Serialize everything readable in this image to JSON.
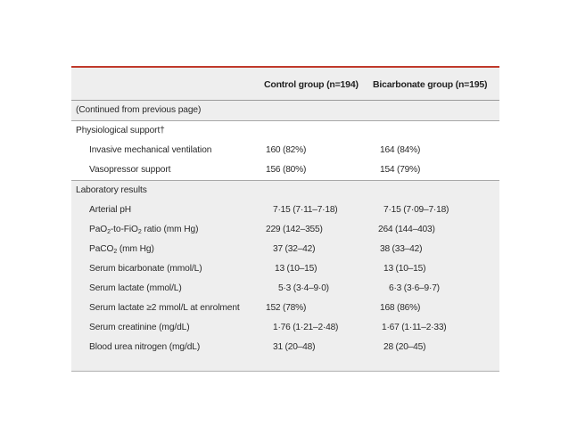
{
  "table": {
    "columns": [
      "Control group (n=194)",
      "Bicarbonate group (n=195)"
    ],
    "continued": "(Continued from previous page)",
    "sections": [
      {
        "title": "Physiological support†",
        "rows": [
          {
            "label": "Invasive mechanical ventilation",
            "control": "160 (82%)",
            "bicarbonate": "164 (84%)"
          },
          {
            "label": "Vasopressor support",
            "control": "156 (80%)",
            "bicarbonate": "154 (79%)"
          }
        ]
      },
      {
        "title": "Laboratory results",
        "rows": [
          {
            "label": "Arterial pH",
            "control": "7·15 (7·11–7·18)",
            "bicarbonate": "7·15 (7·09–7·18)"
          },
          {
            "label_parts": [
              "PaO",
              "2",
              "-to-FiO",
              "2",
              " ratio (mm Hg)"
            ],
            "control": "229 (142–355)",
            "bicarbonate": "264 (144–403)"
          },
          {
            "label_parts": [
              "PaCO",
              "2",
              " (mm Hg)"
            ],
            "control": "37 (32–42)",
            "bicarbonate": "38 (33–42)"
          },
          {
            "label": "Serum bicarbonate (mmol/L)",
            "control": "13 (10–15)",
            "bicarbonate": "13 (10–15)"
          },
          {
            "label": "Serum lactate (mmol/L)",
            "control": "5·3 (3·4–9·0)",
            "bicarbonate": "6·3 (3·6–9·7)"
          },
          {
            "label": "Serum lactate ≥2 mmol/L at enrolment",
            "control": "152 (78%)",
            "bicarbonate": "168 (86%)"
          },
          {
            "label": "Serum creatinine (mg/dL)",
            "control": "1·76 (1·21–2·48)",
            "bicarbonate": "1·67 (1·11–2·33)"
          },
          {
            "label": "Blood urea nitrogen (mg/dL)",
            "control": "31 (20–48)",
            "bicarbonate": "28 (20–45)"
          }
        ]
      }
    ]
  },
  "colors": {
    "accent_rule": "#c0392b",
    "shaded_background": "#eeeeee"
  }
}
